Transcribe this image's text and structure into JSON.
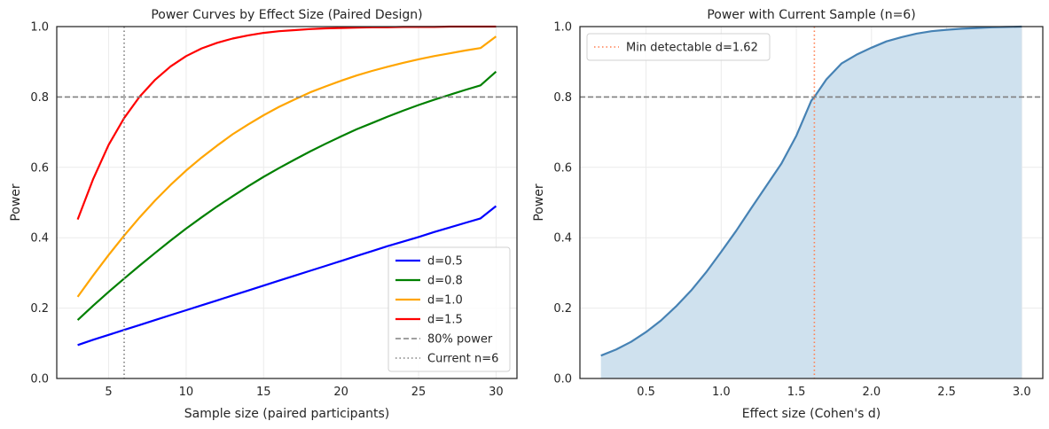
{
  "chart_data": [
    {
      "type": "line",
      "title": "Power Curves by Effect Size (Paired Design)",
      "xlabel": "Sample size (paired participants)",
      "ylabel": "Power",
      "xlim": [
        1.65,
        31.35
      ],
      "ylim": [
        0,
        1.0
      ],
      "xticks": [
        5,
        10,
        15,
        20,
        25,
        30
      ],
      "yticks": [
        0.0,
        0.2,
        0.4,
        0.6,
        0.8,
        1.0
      ],
      "grid": true,
      "legend_position": "lower-right",
      "x": [
        3,
        4,
        5,
        6,
        7,
        8,
        9,
        10,
        11,
        12,
        13,
        14,
        15,
        16,
        17,
        18,
        19,
        20,
        21,
        22,
        23,
        24,
        25,
        26,
        27,
        28,
        29,
        30
      ],
      "series": [
        {
          "name": "d=0.5",
          "color": "#0000ff",
          "values": [
            0.095,
            0.11,
            0.124,
            0.138,
            0.152,
            0.166,
            0.18,
            0.194,
            0.208,
            0.222,
            0.236,
            0.25,
            0.264,
            0.278,
            0.292,
            0.306,
            0.32,
            0.334,
            0.348,
            0.362,
            0.376,
            0.389,
            0.402,
            0.416,
            0.429,
            0.442,
            0.455,
            0.49
          ]
        },
        {
          "name": "d=0.8",
          "color": "#008000",
          "values": [
            0.166,
            0.207,
            0.246,
            0.284,
            0.321,
            0.357,
            0.392,
            0.426,
            0.458,
            0.489,
            0.518,
            0.546,
            0.573,
            0.598,
            0.622,
            0.645,
            0.667,
            0.688,
            0.708,
            0.726,
            0.744,
            0.761,
            0.777,
            0.792,
            0.806,
            0.82,
            0.833,
            0.872
          ]
        },
        {
          "name": "d=1.0",
          "color": "#ffa500",
          "values": [
            0.232,
            0.293,
            0.351,
            0.406,
            0.458,
            0.506,
            0.55,
            0.591,
            0.628,
            0.662,
            0.694,
            0.722,
            0.748,
            0.772,
            0.793,
            0.813,
            0.83,
            0.846,
            0.861,
            0.874,
            0.886,
            0.897,
            0.907,
            0.916,
            0.924,
            0.932,
            0.939,
            0.972
          ]
        },
        {
          "name": "d=1.5",
          "color": "#ff0000",
          "values": [
            0.452,
            0.567,
            0.664,
            0.74,
            0.801,
            0.849,
            0.887,
            0.916,
            0.938,
            0.954,
            0.966,
            0.975,
            0.982,
            0.987,
            0.99,
            0.993,
            0.995,
            0.996,
            0.997,
            0.998,
            0.998,
            0.999,
            0.999,
            0.999,
            1.0,
            1.0,
            1.0,
            1.0
          ]
        }
      ],
      "reference_lines": [
        {
          "name": "80% power",
          "orientation": "horizontal",
          "value": 0.8,
          "style": "dashed",
          "color": "#808080"
        },
        {
          "name": "Current n=6",
          "orientation": "vertical",
          "value": 6,
          "style": "dotted",
          "color": "#808080"
        }
      ]
    },
    {
      "type": "area",
      "title": "Power with Current Sample (n=6)",
      "xlabel": "Effect size (Cohen's d)",
      "ylabel": "Power",
      "xlim": [
        0.06,
        3.14
      ],
      "ylim": [
        0,
        1.0
      ],
      "xticks": [
        0.5,
        1.0,
        1.5,
        2.0,
        2.5,
        3.0
      ],
      "yticks": [
        0.0,
        0.2,
        0.4,
        0.6,
        0.8,
        1.0
      ],
      "grid": true,
      "legend_position": "top-left",
      "line_color": "#4682b4",
      "fill_color": "#cfe1ee",
      "x": [
        0.2,
        0.3,
        0.4,
        0.5,
        0.6,
        0.7,
        0.8,
        0.9,
        1.0,
        1.1,
        1.2,
        1.3,
        1.4,
        1.5,
        1.6,
        1.62,
        1.7,
        1.8,
        1.9,
        2.0,
        2.1,
        2.2,
        2.3,
        2.4,
        2.5,
        2.6,
        2.7,
        2.8,
        2.9,
        3.0
      ],
      "values": [
        0.065,
        0.082,
        0.104,
        0.132,
        0.165,
        0.205,
        0.25,
        0.302,
        0.36,
        0.42,
        0.484,
        0.547,
        0.61,
        0.69,
        0.79,
        0.8,
        0.85,
        0.895,
        0.92,
        0.94,
        0.958,
        0.97,
        0.98,
        0.987,
        0.991,
        0.994,
        0.996,
        0.998,
        0.999,
        1.0
      ],
      "reference_lines": [
        {
          "orientation": "horizontal",
          "value": 0.8,
          "style": "dashed",
          "color": "#808080"
        },
        {
          "name": "Min detectable d=1.62",
          "orientation": "vertical",
          "value": 1.62,
          "style": "dotted",
          "color": "#ff7f50"
        }
      ]
    }
  ]
}
